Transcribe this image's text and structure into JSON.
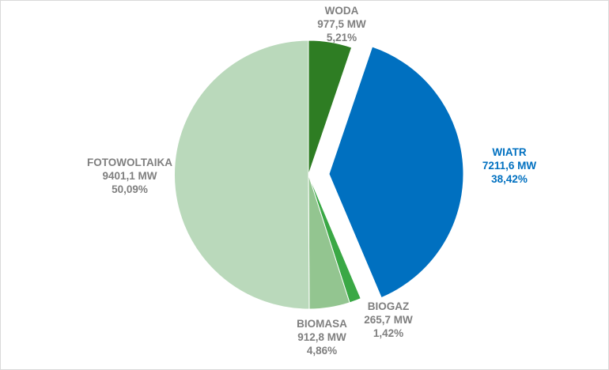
{
  "chart_data": {
    "type": "pie",
    "title": "",
    "unit": "MW",
    "slices": [
      {
        "name": "WODA",
        "value": 977.5,
        "value_label": "977,5 MW",
        "percent": 5.21,
        "percent_label": "5,21%",
        "color": "#2e7d23",
        "label_color": "#7f7f7f",
        "exploded": false
      },
      {
        "name": "WIATR",
        "value": 7211.6,
        "value_label": "7211,6 MW",
        "percent": 38.42,
        "percent_label": "38,42%",
        "color": "#0070c0",
        "label_color": "#0070c0",
        "exploded": true
      },
      {
        "name": "BIOGAZ",
        "value": 265.7,
        "value_label": "265,7 MW",
        "percent": 1.42,
        "percent_label": "1,42%",
        "color": "#3aa845",
        "label_color": "#7f7f7f",
        "exploded": false
      },
      {
        "name": "BIOMASA",
        "value": 912.8,
        "value_label": "912,8 MW",
        "percent": 4.86,
        "percent_label": "4,86%",
        "color": "#93c590",
        "label_color": "#7f7f7f",
        "exploded": false
      },
      {
        "name": "FOTOWOLTAIKA",
        "value": 9401.1,
        "value_label": "9401,1 MW",
        "percent": 50.09,
        "percent_label": "50,09%",
        "color": "#bad9bb",
        "label_color": "#7f7f7f",
        "exploded": false
      }
    ]
  }
}
